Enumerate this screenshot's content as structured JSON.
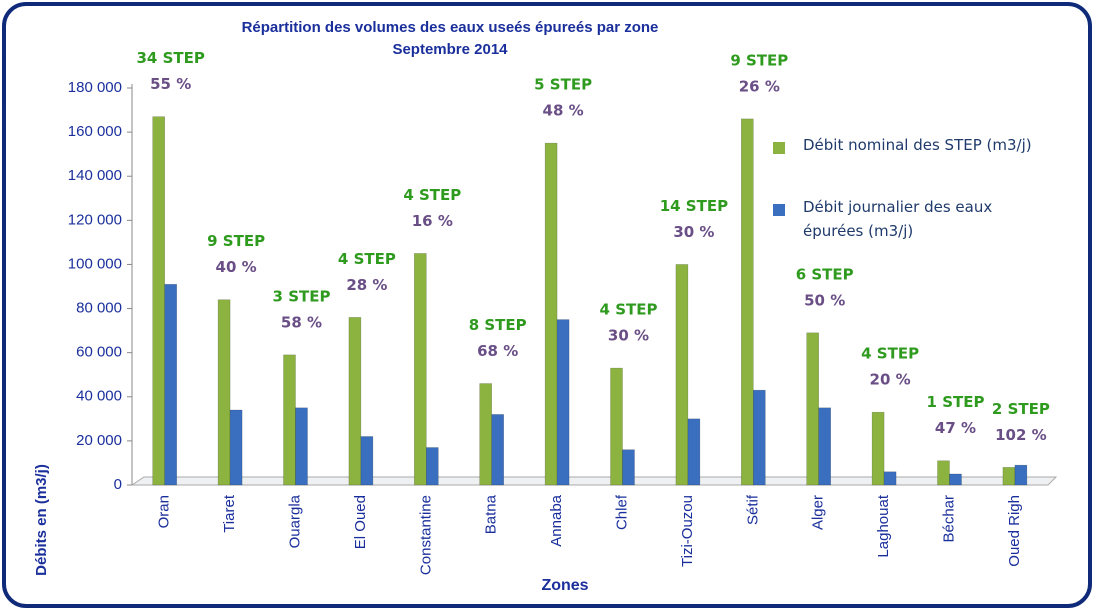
{
  "chart_data": {
    "type": "bar",
    "title": "Répartition des volumes des eaux useés épureés par zone",
    "subtitle": "Septembre 2014",
    "y_label": "Débits en (m3/j)",
    "x_label": "Zones",
    "categories": [
      "Oran",
      "Tiaret",
      "Ouargla",
      "El Oued",
      "Constantine",
      "Batna",
      "Annaba",
      "Chlef",
      "Tizi-Ouzou",
      "Sétif",
      "Alger",
      "Laghouat",
      "Béchar",
      "Oued Righ"
    ],
    "series": [
      {
        "name": "Débit nominal des STEP (m3/j)",
        "color": "#8cb23f",
        "values": [
          167000,
          84000,
          59000,
          76000,
          105000,
          46000,
          155000,
          53000,
          100000,
          166000,
          69000,
          33000,
          11000,
          8000
        ]
      },
      {
        "name": "Débit journalier des eaux épurées (m3/j)",
        "color": "#3a6fbf",
        "values": [
          91000,
          34000,
          35000,
          22000,
          17000,
          32000,
          75000,
          16000,
          30000,
          43000,
          35000,
          6000,
          5000,
          9000
        ]
      }
    ],
    "step_labels": [
      "34 STEP",
      "9 STEP",
      "3 STEP",
      "4 STEP",
      "4 STEP",
      "8 STEP",
      "5 STEP",
      "4 STEP",
      "14 STEP",
      "9 STEP",
      "6 STEP",
      "4 STEP",
      "1 STEP",
      "2 STEP"
    ],
    "percent_labels": [
      "55 %",
      "40 %",
      "58 %",
      "28 %",
      "16 %",
      "68 %",
      "48 %",
      "30 %",
      "30 %",
      "26 %",
      "50 %",
      "20 %",
      "47 %",
      "102 %"
    ],
    "ylim": [
      0,
      180000
    ],
    "yticks": [
      0,
      {
        "value": 20000,
        "label": "20 000"
      },
      {
        "value": 40000,
        "label": "40 000"
      },
      {
        "value": 60000,
        "label": "60 000"
      },
      {
        "value": 80000,
        "label": "80 000"
      },
      {
        "value": 100000,
        "label": "100 000"
      },
      {
        "value": 120000,
        "label": "120 000"
      },
      {
        "value": 140000,
        "label": "140 000"
      },
      {
        "value": 160000,
        "label": "160 000"
      },
      {
        "value": 180000,
        "label": "180 000"
      }
    ],
    "legend": "right"
  }
}
